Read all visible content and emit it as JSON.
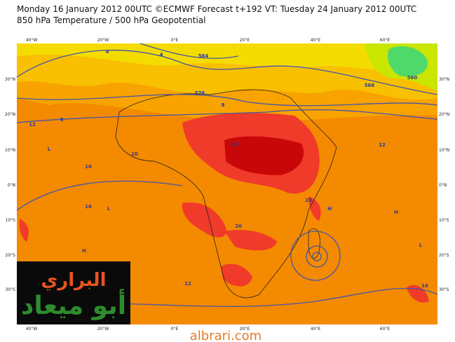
{
  "header": {
    "line1": "Monday 16 January 2012 00UTC ©ECMWF Forecast t+192 VT: Tuesday 24 January 2012 00UTC",
    "line2": "850 hPa Temperature / 500 hPa Geopotential"
  },
  "map": {
    "longitude_labels": [
      "40°W",
      "20°W",
      "0°E",
      "20°E",
      "40°E",
      "60°E"
    ],
    "latitude_labels": [
      "30°N",
      "20°N",
      "10°N",
      "0°N",
      "10°S",
      "20°S",
      "30°S"
    ],
    "contour_labels": [
      "4",
      "4",
      "564",
      "576",
      "8",
      "12",
      "8",
      "16",
      "20",
      "24",
      "16",
      "20",
      "12",
      "20",
      "12",
      "16",
      "568",
      "560",
      "L",
      "L",
      "H",
      "H",
      "L",
      "H"
    ]
  },
  "logo": {
    "line1": "البراري",
    "line2": "أبو ميعاد"
  },
  "watermark": "albrari.com"
}
